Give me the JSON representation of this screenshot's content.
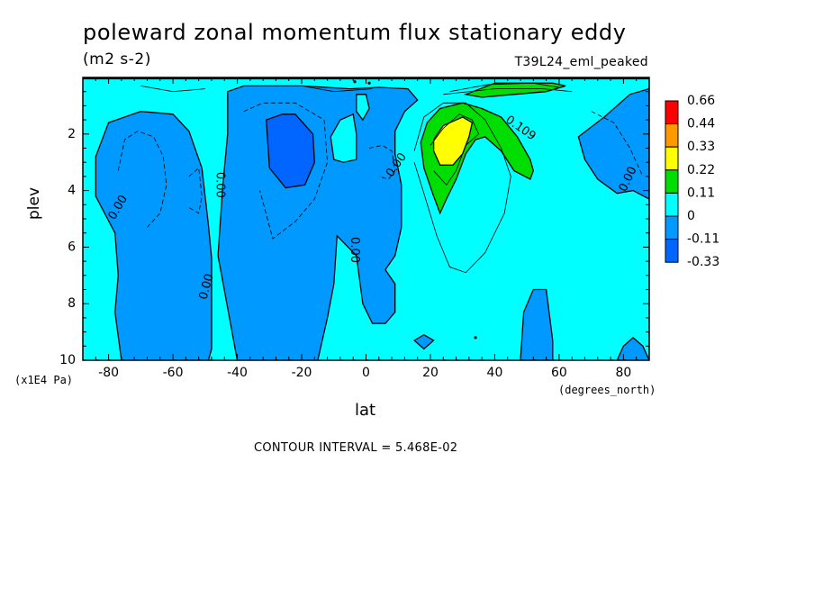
{
  "chart_data": {
    "type": "heatmap",
    "title": "poleward zonal momentum flux stationary eddy",
    "units": "(m2 s-2)",
    "experiment": "T39L24_eml_peaked",
    "xlabel": "lat",
    "x_units": "(degrees_north)",
    "ylabel": "plev",
    "y_scale_note": "(x1E4 Pa)",
    "contour_interval_text": "CONTOUR INTERVAL = 5.468E-02",
    "xlim": [
      -88,
      88
    ],
    "ylim": [
      10,
      0
    ],
    "x_ticks": [
      -80,
      -60,
      -40,
      -20,
      0,
      20,
      40,
      60,
      80
    ],
    "x_tick_labels": [
      "-80",
      "-60",
      "-40",
      "-20",
      "0",
      "20",
      "40",
      "60",
      "80"
    ],
    "y_ticks": [
      2,
      4,
      6,
      8,
      10
    ],
    "y_tick_labels": [
      "2",
      "4",
      "6",
      "8",
      "10"
    ],
    "legend": {
      "position": "right",
      "labels": [
        "0.66",
        "0.44",
        "0.33",
        "0.22",
        "0.11",
        "0",
        "-0.11",
        "-0.33"
      ],
      "colors": [
        "#ff0000",
        "#ff9900",
        "#ffff00",
        "#00dd00",
        "#00ffff",
        "#0099ff",
        "#0066ff"
      ]
    },
    "background_color": "#00ffff",
    "regions": [
      {
        "name": "western-negative-region",
        "fill": "#0099ff",
        "points": [
          [
            -78,
            5.5
          ],
          [
            -84,
            4.2
          ],
          [
            -84,
            2.8
          ],
          [
            -80,
            1.6
          ],
          [
            -70,
            1.2
          ],
          [
            -60,
            1.3
          ],
          [
            -55,
            1.9
          ],
          [
            -51,
            3.2
          ],
          [
            -49,
            5.2
          ],
          [
            -48,
            6.4
          ],
          [
            -48,
            7.8
          ],
          [
            -48,
            9.6
          ],
          [
            -49,
            10
          ],
          [
            -76,
            10
          ],
          [
            -78,
            8.3
          ],
          [
            -77,
            7
          ]
        ]
      },
      {
        "name": "central-negative-region",
        "fill": "#0099ff",
        "points": [
          [
            -40,
            10
          ],
          [
            -46,
            6.3
          ],
          [
            -44.5,
            3.8
          ],
          [
            -43,
            2
          ],
          [
            -43,
            0.5
          ],
          [
            -38,
            0.3
          ],
          [
            -20,
            0.3
          ],
          [
            -5,
            0.4
          ],
          [
            4,
            0.35
          ],
          [
            13,
            0.4
          ],
          [
            16,
            0.8
          ],
          [
            12,
            1.2
          ],
          [
            9,
            1.9
          ],
          [
            9,
            2.7
          ],
          [
            11,
            3.8
          ],
          [
            11,
            5.3
          ],
          [
            9,
            6.3
          ],
          [
            6,
            6.8
          ],
          [
            9,
            7.3
          ],
          [
            9,
            8.3
          ],
          [
            6,
            8.7
          ],
          [
            2,
            8.7
          ],
          [
            -1,
            8
          ],
          [
            -3,
            6.3
          ],
          [
            -9,
            5.6
          ],
          [
            -10,
            7.3
          ],
          [
            -12,
            8.5
          ],
          [
            -15,
            10
          ]
        ]
      },
      {
        "name": "deep-negative-core",
        "fill": "#0066ff",
        "points": [
          [
            -31,
            1.5
          ],
          [
            -26,
            1.3
          ],
          [
            -22,
            1.3
          ],
          [
            -16.5,
            2
          ],
          [
            -16,
            3
          ],
          [
            -19,
            3.8
          ],
          [
            -25,
            3.9
          ],
          [
            -30,
            3.2
          ]
        ]
      },
      {
        "name": "north-negative-region",
        "fill": "#0099ff",
        "points": [
          [
            66,
            2.1
          ],
          [
            74,
            1.4
          ],
          [
            82,
            0.6
          ],
          [
            88,
            0.4
          ],
          [
            88,
            4.3
          ],
          [
            83,
            4
          ],
          [
            78,
            4.1
          ],
          [
            72,
            3.6
          ],
          [
            68,
            2.9
          ]
        ]
      },
      {
        "name": "surface-negative-column",
        "fill": "#0099ff",
        "points": [
          [
            48,
            10
          ],
          [
            49,
            8.3
          ],
          [
            52,
            7.5
          ],
          [
            56,
            7.5
          ],
          [
            58,
            9.3
          ],
          [
            58,
            10
          ]
        ]
      },
      {
        "name": "polar-surface-negative",
        "fill": "#0099ff",
        "points": [
          [
            78,
            10
          ],
          [
            80,
            9.5
          ],
          [
            83,
            9.2
          ],
          [
            86,
            9.5
          ],
          [
            88,
            10
          ]
        ]
      },
      {
        "name": "small-negative-patch",
        "fill": "#0099ff",
        "points": [
          [
            15,
            9.3
          ],
          [
            18,
            9.1
          ],
          [
            21,
            9.3
          ],
          [
            18,
            9.6
          ]
        ]
      },
      {
        "name": "upper-cyan-blob",
        "fill": "#00ffff",
        "points": [
          [
            -11,
            2.1
          ],
          [
            -8,
            1.5
          ],
          [
            -4,
            1.3
          ],
          [
            -3,
            2
          ],
          [
            -3,
            2.9
          ],
          [
            -7,
            3
          ],
          [
            -10,
            2.9
          ]
        ]
      },
      {
        "name": "upper-cyan-blob-2",
        "fill": "#00ffff",
        "points": [
          [
            -3,
            1.2
          ],
          [
            -3,
            0.6
          ],
          [
            0,
            0.6
          ],
          [
            1,
            1.1
          ],
          [
            -1,
            1.5
          ]
        ]
      },
      {
        "name": "positive-region",
        "fill": "#00dd00",
        "points": [
          [
            17,
            2.3
          ],
          [
            19,
            1.6
          ],
          [
            23,
            1.1
          ],
          [
            30,
            0.9
          ],
          [
            36,
            1.1
          ],
          [
            42,
            1.4
          ],
          [
            47,
            2.1
          ],
          [
            51,
            2.9
          ],
          [
            52,
            3.3
          ],
          [
            51,
            3.6
          ],
          [
            46,
            3.3
          ],
          [
            42,
            2.6
          ],
          [
            37,
            2.1
          ],
          [
            34,
            2.2
          ],
          [
            31,
            2.7
          ],
          [
            28,
            3.6
          ],
          [
            25,
            4.3
          ],
          [
            23,
            4.8
          ],
          [
            21,
            4.2
          ],
          [
            18,
            3.2
          ]
        ]
      },
      {
        "name": "positive-core",
        "fill": "#ffff00",
        "points": [
          [
            21,
            2.2
          ],
          [
            24,
            1.7
          ],
          [
            30,
            1.4
          ],
          [
            33,
            1.6
          ],
          [
            32,
            2.1
          ],
          [
            30,
            2.7
          ],
          [
            27,
            3.1
          ],
          [
            23,
            3.1
          ],
          [
            21,
            2.6
          ]
        ]
      },
      {
        "name": "top-positive-band",
        "fill": "#00dd00",
        "points": [
          [
            31,
            0.6
          ],
          [
            40,
            0.2
          ],
          [
            58,
            0.2
          ],
          [
            62,
            0.3
          ],
          [
            56,
            0.5
          ],
          [
            46,
            0.6
          ],
          [
            36,
            0.7
          ]
        ]
      }
    ],
    "lines": [
      {
        "name": "contour-west-dashed",
        "dashed": true,
        "points": [
          [
            -77,
            3.3
          ],
          [
            -75,
            2.2
          ],
          [
            -71,
            1.9
          ],
          [
            -66,
            2.1
          ],
          [
            -63,
            2.8
          ],
          [
            -62,
            3.8
          ],
          [
            -64,
            4.8
          ],
          [
            -68,
            5.3
          ]
        ]
      },
      {
        "name": "contour-west-inner-dashed",
        "dashed": true,
        "points": [
          [
            -55,
            3.5
          ],
          [
            -52,
            3.2
          ],
          [
            -51,
            4.2
          ],
          [
            -52,
            4.8
          ],
          [
            -55,
            4.6
          ]
        ]
      },
      {
        "name": "contour-core-dashed",
        "dashed": true,
        "points": [
          [
            -38,
            1.2
          ],
          [
            -32,
            0.9
          ],
          [
            -22,
            0.9
          ],
          [
            -13,
            1.5
          ],
          [
            -12,
            3
          ],
          [
            -16,
            4.3
          ],
          [
            -22,
            5.1
          ],
          [
            -29,
            5.7
          ],
          [
            -33,
            4
          ]
        ]
      },
      {
        "name": "contour-center-dashed",
        "dashed": true,
        "points": [
          [
            1,
            2.5
          ],
          [
            5,
            2.4
          ],
          [
            8,
            2.6
          ],
          [
            9,
            3.3
          ],
          [
            7,
            3.6
          ],
          [
            4,
            3.5
          ]
        ]
      },
      {
        "name": "contour-positive-outer",
        "dashed": false,
        "points": [
          [
            15,
            2.6
          ],
          [
            18,
            1.4
          ],
          [
            24,
            0.9
          ],
          [
            31,
            0.9
          ],
          [
            37,
            1.5
          ],
          [
            42,
            2.5
          ],
          [
            45,
            3.5
          ],
          [
            43,
            4.8
          ],
          [
            37,
            6.2
          ],
          [
            31,
            6.9
          ],
          [
            26,
            6.7
          ],
          [
            22,
            5.6
          ],
          [
            18,
            4.1
          ],
          [
            15,
            3
          ]
        ]
      },
      {
        "name": "contour-positive-inner",
        "dashed": false,
        "points": [
          [
            20,
            2.4
          ],
          [
            24,
            1.8
          ],
          [
            29,
            1.3
          ],
          [
            33,
            1.5
          ],
          [
            35,
            2
          ],
          [
            31,
            2.4
          ],
          [
            28,
            3.3
          ],
          [
            25,
            3.8
          ],
          [
            21,
            3.3
          ]
        ]
      },
      {
        "name": "contour-top-left",
        "dashed": false,
        "points": [
          [
            -70,
            0.3
          ],
          [
            -60,
            0.5
          ],
          [
            -50,
            0.4
          ]
        ]
      },
      {
        "name": "contour-top-center",
        "dashed": false,
        "points": [
          [
            -20,
            0.3
          ],
          [
            -10,
            0.5
          ],
          [
            2,
            0.4
          ]
        ]
      },
      {
        "name": "contour-top-pos-1",
        "dashed": false,
        "points": [
          [
            26,
            0.5
          ],
          [
            38,
            0.25
          ],
          [
            52,
            0.2
          ],
          [
            60,
            0.35
          ]
        ]
      },
      {
        "name": "contour-top-pos-2",
        "dashed": false,
        "points": [
          [
            24,
            0.6
          ],
          [
            40,
            0.4
          ],
          [
            55,
            0.4
          ],
          [
            64,
            0.5
          ]
        ]
      },
      {
        "name": "contour-north-dashed",
        "dashed": true,
        "points": [
          [
            70,
            1.2
          ],
          [
            77,
            1.6
          ],
          [
            82,
            2.5
          ],
          [
            86,
            3.5
          ]
        ]
      }
    ],
    "labels": [
      {
        "text": "0.00",
        "x": -77,
        "y": 4.6,
        "rotate": -60
      },
      {
        "text": "0.00",
        "x": -45.5,
        "y": 3.8,
        "rotate": 90
      },
      {
        "text": "0.00",
        "x": -49.5,
        "y": 7.4,
        "rotate": -75
      },
      {
        "text": "0.00",
        "x": -3.7,
        "y": 6.1,
        "rotate": 90
      },
      {
        "text": "0.00",
        "x": 9.5,
        "y": 3.1,
        "rotate": -55
      },
      {
        "text": "0.109",
        "x": 48,
        "y": 1.8,
        "rotate": 35
      },
      {
        "text": "0.00",
        "x": 81.5,
        "y": 3.6,
        "rotate": -65
      }
    ],
    "small_marks": [
      [
        -3.5,
        0.15
      ],
      [
        1,
        0.2
      ],
      [
        34,
        9.2
      ]
    ]
  }
}
